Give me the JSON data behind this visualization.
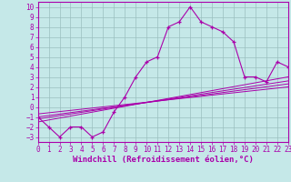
{
  "xlabel": "Windchill (Refroidissement éolien,°C)",
  "xlim": [
    0,
    23
  ],
  "ylim": [
    -3.5,
    10.5
  ],
  "xticks": [
    0,
    1,
    2,
    3,
    4,
    5,
    6,
    7,
    8,
    9,
    10,
    11,
    12,
    13,
    14,
    15,
    16,
    17,
    18,
    19,
    20,
    21,
    22,
    23
  ],
  "yticks": [
    -3,
    -2,
    -1,
    0,
    1,
    2,
    3,
    4,
    5,
    6,
    7,
    8,
    9,
    10
  ],
  "background_color": "#c5e8e8",
  "line_color": "#aa00aa",
  "grid_color": "#9bbfbf",
  "curve1_x": [
    0,
    1,
    2,
    3,
    4,
    5,
    6,
    7,
    8,
    9,
    10,
    11,
    12,
    13,
    14,
    15,
    16,
    17,
    18,
    19,
    20,
    21,
    22,
    23
  ],
  "curve1_y": [
    -1.0,
    -2.0,
    -3.0,
    -2.0,
    -2.0,
    -3.0,
    -2.5,
    -0.5,
    1.0,
    3.0,
    4.5,
    5.0,
    8.0,
    8.5,
    10.0,
    8.5,
    8.0,
    7.5,
    6.5,
    3.0,
    3.0,
    2.5,
    4.5,
    4.0
  ],
  "lines": [
    {
      "x": [
        0,
        23
      ],
      "y": [
        -1.5,
        3.0
      ]
    },
    {
      "x": [
        0,
        23
      ],
      "y": [
        -1.2,
        2.6
      ]
    },
    {
      "x": [
        0,
        23
      ],
      "y": [
        -1.0,
        2.3
      ]
    },
    {
      "x": [
        0,
        23
      ],
      "y": [
        -0.7,
        2.0
      ]
    }
  ],
  "figsize": [
    3.2,
    2.0
  ],
  "dpi": 100,
  "tick_fontsize": 5.5,
  "xlabel_fontsize": 6.5
}
